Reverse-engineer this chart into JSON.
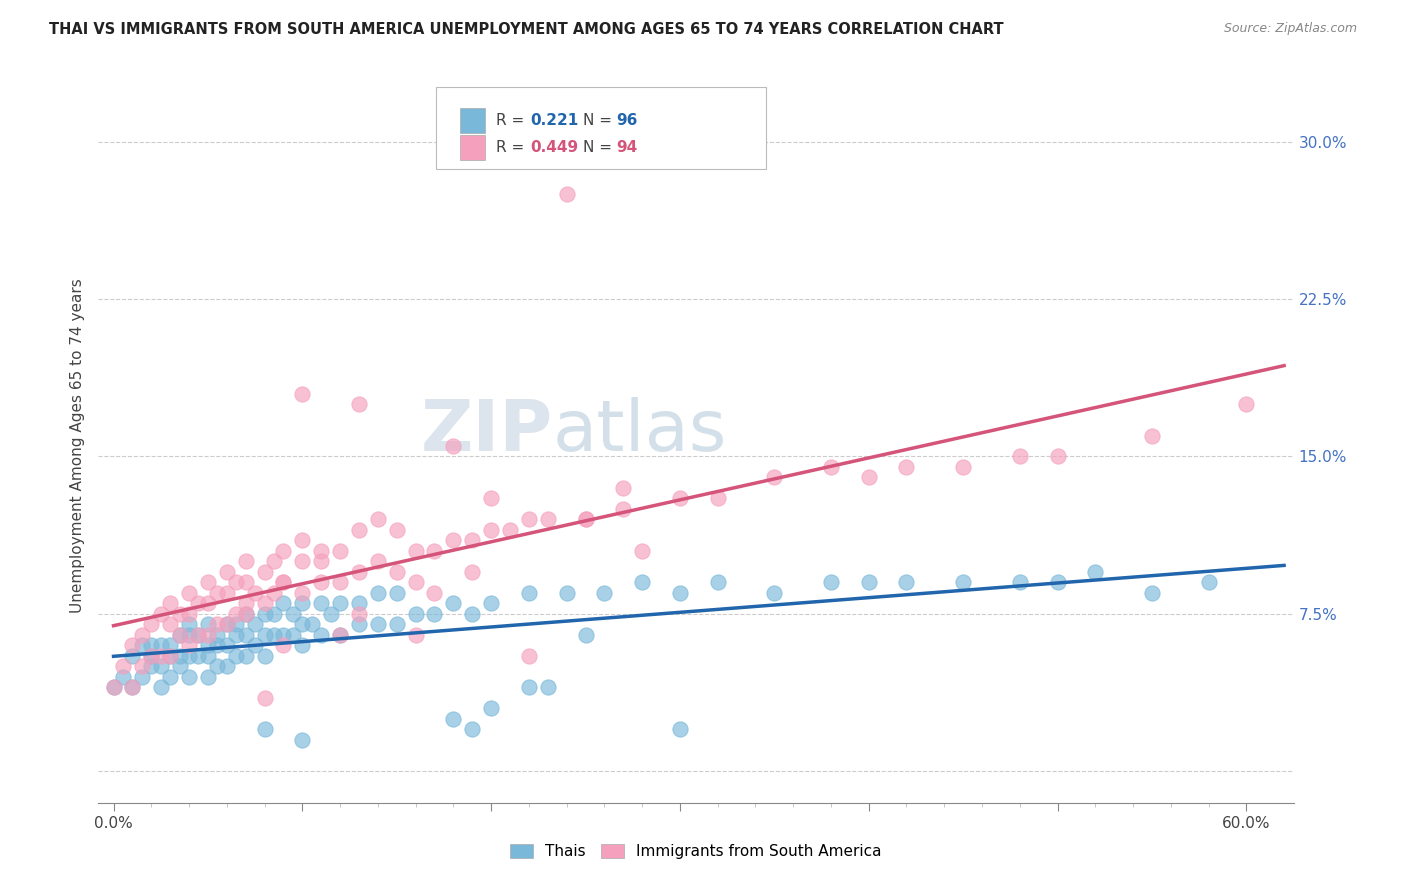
{
  "title": "THAI VS IMMIGRANTS FROM SOUTH AMERICA UNEMPLOYMENT AMONG AGES 65 TO 74 YEARS CORRELATION CHART",
  "source": "Source: ZipAtlas.com",
  "xlabel_ticks": [
    "0.0%",
    "",
    "",
    "",
    "",
    "",
    "",
    "",
    "",
    "",
    "",
    "60.0%"
  ],
  "xlabel_vals": [
    0.0,
    0.06,
    0.12,
    0.18,
    0.24,
    0.3,
    0.36,
    0.42,
    0.48,
    0.54,
    0.6
  ],
  "ylabel": "Unemployment Among Ages 65 to 74 years",
  "ytick_vals": [
    0.0,
    0.075,
    0.15,
    0.225,
    0.3
  ],
  "ytick_labels": [
    "",
    "7.5%",
    "15.0%",
    "22.5%",
    "30.0%"
  ],
  "xlim": [
    -0.008,
    0.625
  ],
  "ylim": [
    -0.015,
    0.325
  ],
  "r_thai": 0.221,
  "n_thai": 96,
  "r_sa": 0.449,
  "n_sa": 94,
  "thai_color": "#7ab8d9",
  "sa_color": "#f5a0bc",
  "thai_line_color": "#2166ac",
  "sa_line_color": "#d4547a",
  "watermark_zip": "ZIP",
  "watermark_atlas": "atlas",
  "legend_label_thai": "Thais",
  "legend_label_sa": "Immigrants from South America",
  "thai_scatter_x": [
    0.0,
    0.005,
    0.01,
    0.01,
    0.015,
    0.015,
    0.02,
    0.02,
    0.02,
    0.025,
    0.025,
    0.025,
    0.03,
    0.03,
    0.03,
    0.035,
    0.035,
    0.035,
    0.04,
    0.04,
    0.04,
    0.04,
    0.045,
    0.045,
    0.05,
    0.05,
    0.05,
    0.05,
    0.055,
    0.055,
    0.055,
    0.06,
    0.06,
    0.06,
    0.065,
    0.065,
    0.065,
    0.07,
    0.07,
    0.07,
    0.075,
    0.075,
    0.08,
    0.08,
    0.08,
    0.085,
    0.085,
    0.09,
    0.09,
    0.095,
    0.095,
    0.1,
    0.1,
    0.1,
    0.105,
    0.11,
    0.11,
    0.115,
    0.12,
    0.12,
    0.13,
    0.13,
    0.14,
    0.14,
    0.15,
    0.15,
    0.16,
    0.17,
    0.18,
    0.19,
    0.2,
    0.22,
    0.24,
    0.26,
    0.28,
    0.3,
    0.32,
    0.35,
    0.38,
    0.4,
    0.42,
    0.45,
    0.48,
    0.5,
    0.52,
    0.55,
    0.58,
    0.3,
    0.22,
    0.18,
    0.25,
    0.1,
    0.08,
    0.19,
    0.2,
    0.23
  ],
  "thai_scatter_y": [
    0.04,
    0.045,
    0.04,
    0.055,
    0.045,
    0.06,
    0.05,
    0.055,
    0.06,
    0.04,
    0.05,
    0.06,
    0.045,
    0.055,
    0.06,
    0.05,
    0.055,
    0.065,
    0.045,
    0.055,
    0.065,
    0.07,
    0.055,
    0.065,
    0.045,
    0.055,
    0.06,
    0.07,
    0.05,
    0.06,
    0.065,
    0.05,
    0.06,
    0.07,
    0.055,
    0.065,
    0.07,
    0.055,
    0.065,
    0.075,
    0.06,
    0.07,
    0.055,
    0.065,
    0.075,
    0.065,
    0.075,
    0.065,
    0.08,
    0.065,
    0.075,
    0.06,
    0.07,
    0.08,
    0.07,
    0.065,
    0.08,
    0.075,
    0.065,
    0.08,
    0.07,
    0.08,
    0.07,
    0.085,
    0.07,
    0.085,
    0.075,
    0.075,
    0.08,
    0.075,
    0.08,
    0.085,
    0.085,
    0.085,
    0.09,
    0.085,
    0.09,
    0.085,
    0.09,
    0.09,
    0.09,
    0.09,
    0.09,
    0.09,
    0.095,
    0.085,
    0.09,
    0.02,
    0.04,
    0.025,
    0.065,
    0.015,
    0.02,
    0.02,
    0.03,
    0.04
  ],
  "sa_scatter_x": [
    0.0,
    0.005,
    0.01,
    0.01,
    0.015,
    0.015,
    0.02,
    0.02,
    0.025,
    0.025,
    0.03,
    0.03,
    0.03,
    0.035,
    0.035,
    0.04,
    0.04,
    0.04,
    0.045,
    0.045,
    0.05,
    0.05,
    0.05,
    0.055,
    0.055,
    0.06,
    0.06,
    0.06,
    0.065,
    0.065,
    0.07,
    0.07,
    0.07,
    0.075,
    0.08,
    0.08,
    0.085,
    0.085,
    0.09,
    0.09,
    0.1,
    0.1,
    0.1,
    0.11,
    0.11,
    0.12,
    0.12,
    0.13,
    0.13,
    0.14,
    0.15,
    0.15,
    0.16,
    0.17,
    0.18,
    0.19,
    0.2,
    0.21,
    0.22,
    0.23,
    0.25,
    0.27,
    0.3,
    0.32,
    0.35,
    0.38,
    0.4,
    0.42,
    0.45,
    0.48,
    0.5,
    0.55,
    0.6,
    0.13,
    0.16,
    0.19,
    0.14,
    0.18,
    0.1,
    0.08,
    0.22,
    0.25,
    0.28,
    0.16,
    0.2,
    0.13,
    0.17,
    0.09,
    0.12,
    0.07,
    0.09,
    0.11,
    0.24,
    0.27
  ],
  "sa_scatter_y": [
    0.04,
    0.05,
    0.04,
    0.06,
    0.05,
    0.065,
    0.055,
    0.07,
    0.055,
    0.075,
    0.055,
    0.07,
    0.08,
    0.065,
    0.075,
    0.06,
    0.075,
    0.085,
    0.065,
    0.08,
    0.065,
    0.08,
    0.09,
    0.07,
    0.085,
    0.07,
    0.085,
    0.095,
    0.075,
    0.09,
    0.075,
    0.09,
    0.1,
    0.085,
    0.08,
    0.095,
    0.085,
    0.1,
    0.09,
    0.105,
    0.085,
    0.1,
    0.11,
    0.09,
    0.105,
    0.09,
    0.105,
    0.095,
    0.115,
    0.1,
    0.095,
    0.115,
    0.105,
    0.105,
    0.11,
    0.11,
    0.115,
    0.115,
    0.12,
    0.12,
    0.12,
    0.125,
    0.13,
    0.13,
    0.14,
    0.145,
    0.14,
    0.145,
    0.145,
    0.15,
    0.15,
    0.16,
    0.175,
    0.175,
    0.065,
    0.095,
    0.12,
    0.155,
    0.18,
    0.035,
    0.055,
    0.12,
    0.105,
    0.09,
    0.13,
    0.075,
    0.085,
    0.09,
    0.065,
    0.08,
    0.06,
    0.1,
    0.275,
    0.135
  ]
}
